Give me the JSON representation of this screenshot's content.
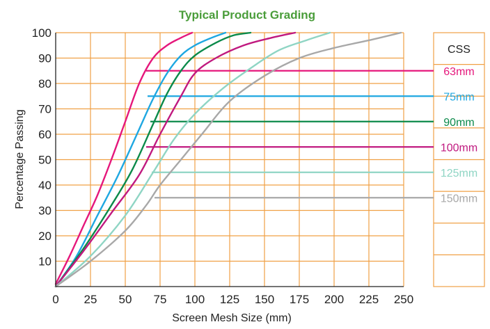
{
  "chart_data": {
    "type": "line",
    "title": "Typical Product Grading",
    "xlabel": "Screen Mesh Size (mm)",
    "ylabel": "Percentage Passing",
    "xlim": [
      0,
      250
    ],
    "ylim": [
      0,
      100
    ],
    "x_ticks": [
      "0",
      "25",
      "50",
      "75",
      "100",
      "125",
      "150",
      "175",
      "200",
      "225",
      "250"
    ],
    "y_ticks": [
      "10",
      "20",
      "30",
      "40",
      "50",
      "60",
      "70",
      "80",
      "90",
      "100"
    ],
    "grid": true,
    "legend": {
      "title": "CSS",
      "placement": "right",
      "entries": [
        "63mm",
        "75mm",
        "90mm",
        "100mm",
        "125mm",
        "150mm"
      ]
    },
    "series": [
      {
        "name": "63mm",
        "color": "#e5177b",
        "points": [
          [
            0,
            1
          ],
          [
            10,
            12
          ],
          [
            20,
            24
          ],
          [
            30,
            36
          ],
          [
            40,
            50
          ],
          [
            50,
            65
          ],
          [
            60,
            80
          ],
          [
            70,
            90
          ],
          [
            80,
            95
          ],
          [
            90,
            98
          ],
          [
            98,
            100
          ]
        ],
        "css_y": 85,
        "css_x_start": 65
      },
      {
        "name": "75mm",
        "color": "#1ea7e1",
        "points": [
          [
            0,
            0
          ],
          [
            15,
            12
          ],
          [
            30,
            28
          ],
          [
            45,
            44
          ],
          [
            60,
            62
          ],
          [
            70,
            74
          ],
          [
            80,
            84
          ],
          [
            90,
            91
          ],
          [
            100,
            95
          ],
          [
            112,
            98
          ],
          [
            122,
            100
          ]
        ],
        "css_y": 75,
        "css_x_start": 66
      },
      {
        "name": "90mm",
        "color": "#0b8a4a",
        "points": [
          [
            0,
            0
          ],
          [
            20,
            15
          ],
          [
            40,
            32
          ],
          [
            55,
            46
          ],
          [
            70,
            64
          ],
          [
            80,
            76
          ],
          [
            90,
            85
          ],
          [
            100,
            91
          ],
          [
            115,
            96
          ],
          [
            128,
            99
          ],
          [
            140,
            100
          ]
        ],
        "css_y": 65,
        "css_x_start": 68
      },
      {
        "name": "100mm",
        "color": "#c0197f",
        "points": [
          [
            0,
            0
          ],
          [
            20,
            14
          ],
          [
            40,
            29
          ],
          [
            60,
            44
          ],
          [
            75,
            60
          ],
          [
            90,
            75
          ],
          [
            100,
            84
          ],
          [
            115,
            90
          ],
          [
            135,
            95
          ],
          [
            155,
            98
          ],
          [
            172,
            100
          ]
        ],
        "css_y": 55,
        "css_x_start": 65
      },
      {
        "name": "125mm",
        "color": "#8fd5c4",
        "points": [
          [
            0,
            0
          ],
          [
            25,
            12
          ],
          [
            50,
            28
          ],
          [
            70,
            45
          ],
          [
            85,
            58
          ],
          [
            100,
            68
          ],
          [
            120,
            78
          ],
          [
            140,
            86
          ],
          [
            160,
            93
          ],
          [
            180,
            97
          ],
          [
            197,
            100
          ]
        ],
        "css_y": 45,
        "css_x_start": 69
      },
      {
        "name": "150mm",
        "color": "#a8a8a8",
        "points": [
          [
            0,
            0
          ],
          [
            25,
            10
          ],
          [
            50,
            22
          ],
          [
            65,
            32
          ],
          [
            75,
            40
          ],
          [
            90,
            50
          ],
          [
            105,
            60
          ],
          [
            125,
            73
          ],
          [
            150,
            83
          ],
          [
            175,
            90
          ],
          [
            200,
            94
          ],
          [
            225,
            97
          ],
          [
            248,
            100
          ]
        ],
        "css_y": 35,
        "css_x_start": 71
      }
    ],
    "colors": {
      "title": "#4a9d3a",
      "grid": "#f0a045",
      "axis": "#222222",
      "legend_border": "#f0a045"
    }
  }
}
